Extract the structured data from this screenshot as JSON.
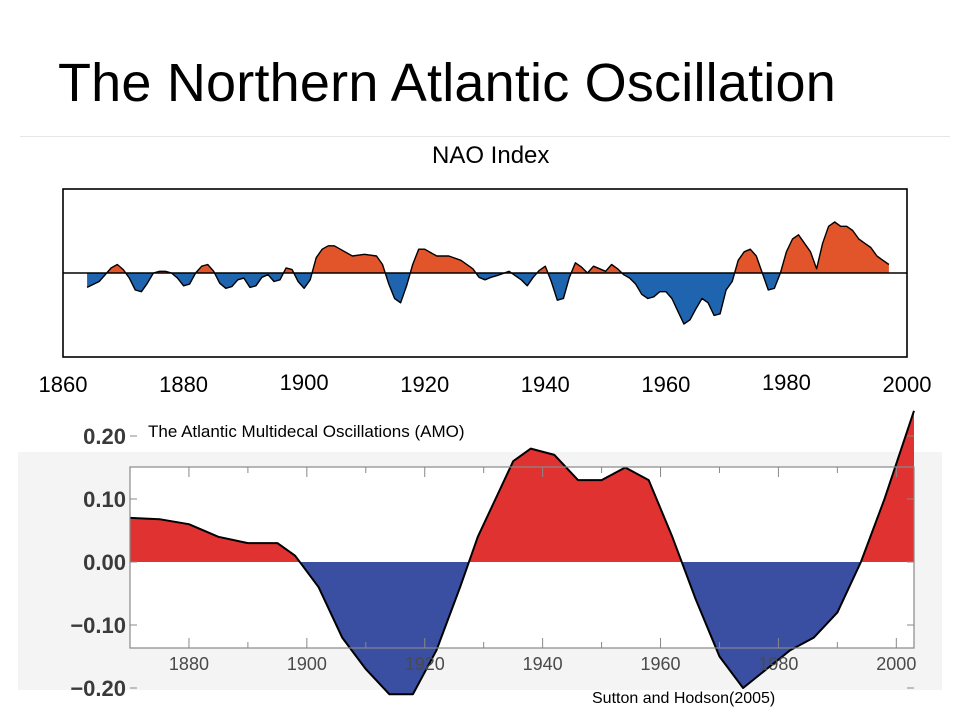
{
  "slide": {
    "title": "The Northern Atlantic Oscillation",
    "credit": "Sutton and Hodson(2005)"
  },
  "colors": {
    "positive_nao": "#e2542a",
    "negative_nao": "#1f64ae",
    "positive_amo": "#e03331",
    "negative_amo": "#3a4fa1",
    "frame": "#000000"
  },
  "chart_data": [
    {
      "type": "area",
      "title": "NAO Index",
      "xlim": [
        1860,
        2000
      ],
      "xticks": [
        "1860",
        "1880",
        "1900",
        "1920",
        "1940",
        "1960",
        "1980",
        "2000"
      ],
      "baseline": 0,
      "ylim": [
        -1,
        1
      ],
      "grid": false,
      "series": [
        {
          "x": [
            1864,
            1866,
            1868,
            1869,
            1870,
            1871,
            1872,
            1873,
            1874,
            1875,
            1876,
            1877,
            1878,
            1879,
            1880,
            1881,
            1882,
            1883,
            1884,
            1885,
            1886,
            1887,
            1888,
            1889,
            1890,
            1891,
            1892,
            1893,
            1894,
            1895,
            1896,
            1897,
            1898,
            1899,
            1900,
            1901,
            1902,
            1903,
            1904,
            1905,
            1906,
            1908,
            1910,
            1912,
            1913,
            1914,
            1915,
            1916,
            1917,
            1918,
            1919,
            1920,
            1921,
            1922,
            1924,
            1926,
            1928,
            1929,
            1930,
            1931,
            1932,
            1934,
            1936,
            1937,
            1938,
            1939,
            1940,
            1941,
            1942,
            1943,
            1944,
            1945,
            1946,
            1947,
            1948,
            1950,
            1951,
            1952,
            1953,
            1954,
            1955,
            1956,
            1957,
            1958,
            1959,
            1960,
            1961,
            1962,
            1963,
            1964,
            1965,
            1966,
            1967,
            1968,
            1969,
            1970,
            1971,
            1972,
            1973,
            1974,
            1975,
            1976,
            1977,
            1978,
            1979,
            1980,
            1981,
            1982,
            1983,
            1984,
            1985,
            1986,
            1987,
            1988,
            1989,
            1990,
            1991,
            1992,
            1993,
            1994,
            1995,
            1996,
            1997
          ],
          "y": [
            -0.17,
            -0.1,
            0.06,
            0.1,
            0.04,
            -0.06,
            -0.2,
            -0.22,
            -0.12,
            0.0,
            0.02,
            0.02,
            0.0,
            -0.06,
            -0.15,
            -0.13,
            0.0,
            0.08,
            0.1,
            0.02,
            -0.12,
            -0.18,
            -0.16,
            -0.08,
            -0.06,
            -0.17,
            -0.15,
            -0.05,
            -0.02,
            -0.1,
            -0.08,
            0.06,
            0.04,
            -0.1,
            -0.18,
            -0.08,
            0.18,
            0.28,
            0.32,
            0.32,
            0.28,
            0.2,
            0.22,
            0.2,
            0.1,
            -0.12,
            -0.3,
            -0.35,
            -0.15,
            0.1,
            0.28,
            0.28,
            0.24,
            0.2,
            0.2,
            0.15,
            0.05,
            -0.05,
            -0.08,
            -0.05,
            -0.03,
            0.02,
            -0.08,
            -0.15,
            -0.05,
            0.03,
            0.08,
            -0.1,
            -0.32,
            -0.3,
            -0.05,
            0.12,
            0.07,
            0.0,
            0.08,
            0.02,
            0.1,
            0.05,
            -0.02,
            -0.06,
            -0.13,
            -0.25,
            -0.3,
            -0.28,
            -0.22,
            -0.22,
            -0.3,
            -0.45,
            -0.6,
            -0.55,
            -0.42,
            -0.3,
            -0.35,
            -0.5,
            -0.48,
            -0.2,
            -0.1,
            0.15,
            0.25,
            0.28,
            0.2,
            0.0,
            -0.2,
            -0.18,
            0.0,
            0.25,
            0.4,
            0.45,
            0.35,
            0.25,
            0.05,
            0.35,
            0.55,
            0.6,
            0.55,
            0.55,
            0.5,
            0.4,
            0.35,
            0.3,
            0.2,
            0.15,
            0.1
          ]
        }
      ]
    },
    {
      "type": "area",
      "title": "The Atlantic Multidecal Oscillations (AMO)",
      "xlim": [
        1870,
        2003
      ],
      "xticks": [
        "1880",
        "1900",
        "1920",
        "1940",
        "1960",
        "1980",
        "2000"
      ],
      "yticks": [
        "0.20",
        "0.10",
        "0.00",
        "−0.10",
        "−0.20"
      ],
      "ytick_values": [
        0.2,
        0.1,
        0.0,
        -0.1,
        -0.2
      ],
      "ylim": [
        -0.24,
        0.3
      ],
      "baseline": 0,
      "grid": false,
      "series": [
        {
          "x": [
            1870,
            1875,
            1880,
            1885,
            1890,
            1895,
            1898,
            1902,
            1906,
            1910,
            1914,
            1918,
            1922,
            1926,
            1929,
            1932,
            1935,
            1938,
            1942,
            1946,
            1950,
            1954,
            1958,
            1962,
            1966,
            1970,
            1974,
            1978,
            1982,
            1986,
            1990,
            1994,
            1998,
            2003
          ],
          "y": [
            0.07,
            0.068,
            0.06,
            0.04,
            0.03,
            0.03,
            0.01,
            -0.04,
            -0.12,
            -0.17,
            -0.21,
            -0.21,
            -0.14,
            -0.04,
            0.04,
            0.1,
            0.16,
            0.18,
            0.17,
            0.13,
            0.13,
            0.15,
            0.13,
            0.04,
            -0.06,
            -0.15,
            -0.2,
            -0.17,
            -0.14,
            -0.12,
            -0.08,
            0.0,
            0.1,
            0.24
          ]
        }
      ]
    }
  ]
}
